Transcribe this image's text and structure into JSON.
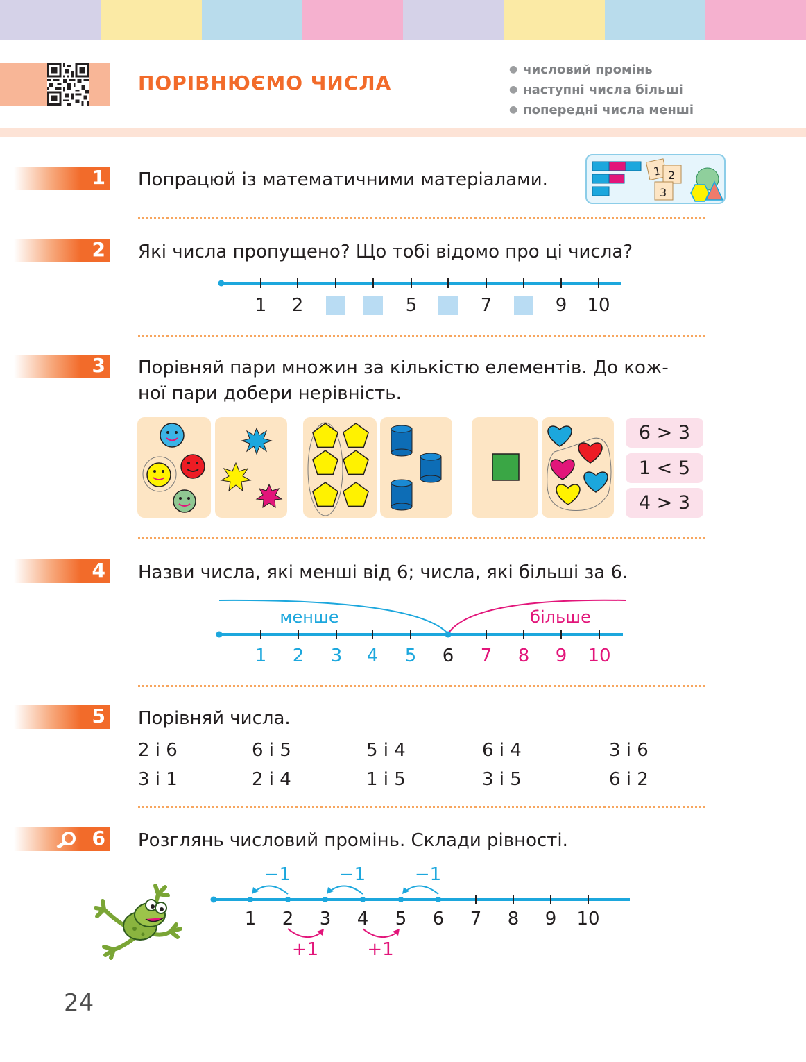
{
  "header": {
    "title": "ПОРІВНЮЄМО ЧИСЛА",
    "tags": [
      "числовий промінь",
      "наступні числа більші",
      "попередні числа менші"
    ],
    "stripe_colors": [
      "#d5d2e8",
      "#fbeaa5",
      "#b9dcec",
      "#f5b1cf",
      "#d5d2e8",
      "#fbeaa5",
      "#b9dcec",
      "#f5b1cf"
    ]
  },
  "tasks": [
    {
      "num": "1",
      "text": "Попрацюй із математичними матеріалами."
    },
    {
      "num": "2",
      "text": "Які числа пропущено? Що тобі відомо про ці числа?"
    },
    {
      "num": "3",
      "text": "Порівняй пари множин за кількістю елементів. До кож-",
      "text2": "ної пари добери нерівність."
    },
    {
      "num": "4",
      "text": "Назви числа, які менші від 6; числа, які більші за 6."
    },
    {
      "num": "5",
      "text": "Порівняй числа."
    },
    {
      "num": "6",
      "text": "Розглянь числовий промінь. Склади рівності."
    }
  ],
  "task1_cards": [
    "1",
    "2",
    "3"
  ],
  "task2": {
    "labels": [
      "1",
      "2",
      "",
      "",
      "5",
      "",
      "7",
      "",
      "9",
      "10"
    ]
  },
  "task3": {
    "inequalities": [
      "6 > 3",
      "1 < 5",
      "4 > 3"
    ]
  },
  "task4": {
    "less_label": "менше",
    "more_label": "більше",
    "labels": [
      "1",
      "2",
      "3",
      "4",
      "5",
      "6",
      "7",
      "8",
      "9",
      "10"
    ],
    "colors": {
      "less": "#1ca7dd",
      "more": "#e2157a",
      "six": "#231f20"
    }
  },
  "task5": {
    "row1": [
      "2 і 6",
      "6 і 5",
      "5 і 4",
      "6 і 4",
      "3 і 6"
    ],
    "row2": [
      "3 і 1",
      "2 і 4",
      "1 і 5",
      "3 і 5",
      "6 і 2"
    ]
  },
  "task6": {
    "minus_label": "−1",
    "plus_label": "+1",
    "labels": [
      "1",
      "2",
      "3",
      "4",
      "5",
      "6",
      "7",
      "8",
      "9",
      "10"
    ]
  },
  "page_number": "24"
}
